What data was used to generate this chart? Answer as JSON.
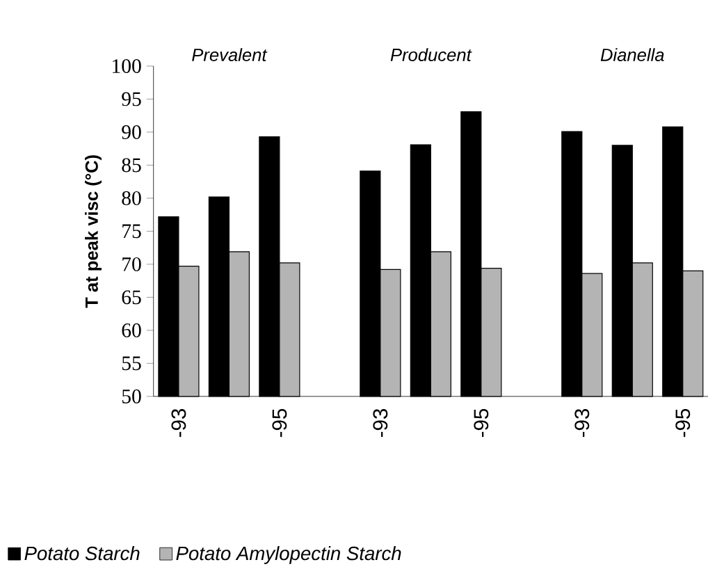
{
  "chart_data": {
    "type": "bar",
    "ylabel": "T at peak visc (°C)",
    "categories": [
      "-93",
      null,
      "-95",
      null,
      "-93",
      null,
      "-95",
      null,
      "-93",
      null,
      "-95"
    ],
    "series": [
      {
        "name": "Potato Starch",
        "color": "#000000",
        "values": [
          77.2,
          80.2,
          89.3,
          null,
          84.1,
          88.1,
          93.1,
          null,
          90.1,
          88.0,
          90.8
        ]
      },
      {
        "name": "Potato Amylopectin Starch",
        "color": "#b4b4b4",
        "values": [
          69.7,
          71.9,
          70.2,
          null,
          69.2,
          71.9,
          69.4,
          null,
          68.6,
          70.2,
          69.0
        ]
      }
    ],
    "ylim": [
      50,
      100
    ],
    "yticks": [
      50,
      55,
      60,
      65,
      70,
      75,
      80,
      85,
      90,
      95,
      100
    ],
    "annotations": [
      "Prevalent",
      "Producent",
      "Dianella"
    ],
    "legend": "bottom",
    "grid": false
  }
}
